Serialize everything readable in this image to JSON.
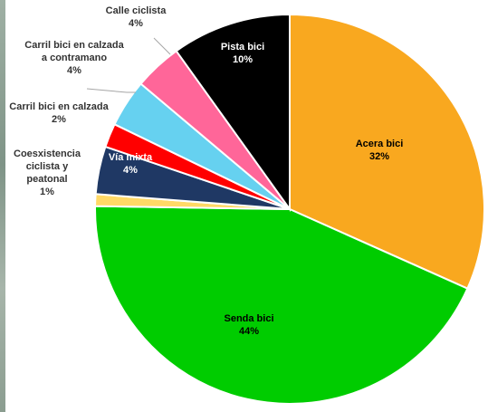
{
  "chart_data": {
    "type": "pie",
    "title": "",
    "slices": [
      {
        "label": "Acera bici",
        "value": 32,
        "display": "32%",
        "color": "#F9A81F"
      },
      {
        "label": "Senda bici",
        "value": 44,
        "display": "44%",
        "color": "#00CC00"
      },
      {
        "label": "Coesxistencia ciclista y peatonal",
        "value": 1,
        "display": "1%",
        "color": "#FFD966"
      },
      {
        "label": "Vía mixta",
        "value": 4,
        "display": "4%",
        "color": "#1F3864"
      },
      {
        "label": "Carril bici en calzada",
        "value": 2,
        "display": "2%",
        "color": "#FF0000"
      },
      {
        "label": "Carril bici en calzada a contramano",
        "value": 4,
        "display": "4%",
        "color": "#66D1F0"
      },
      {
        "label": "Calle ciclista",
        "value": 4,
        "display": "4%",
        "color": "#FF6699"
      },
      {
        "label": "Pista bici",
        "value": 10,
        "display": "10%",
        "color": "#000000"
      }
    ]
  }
}
